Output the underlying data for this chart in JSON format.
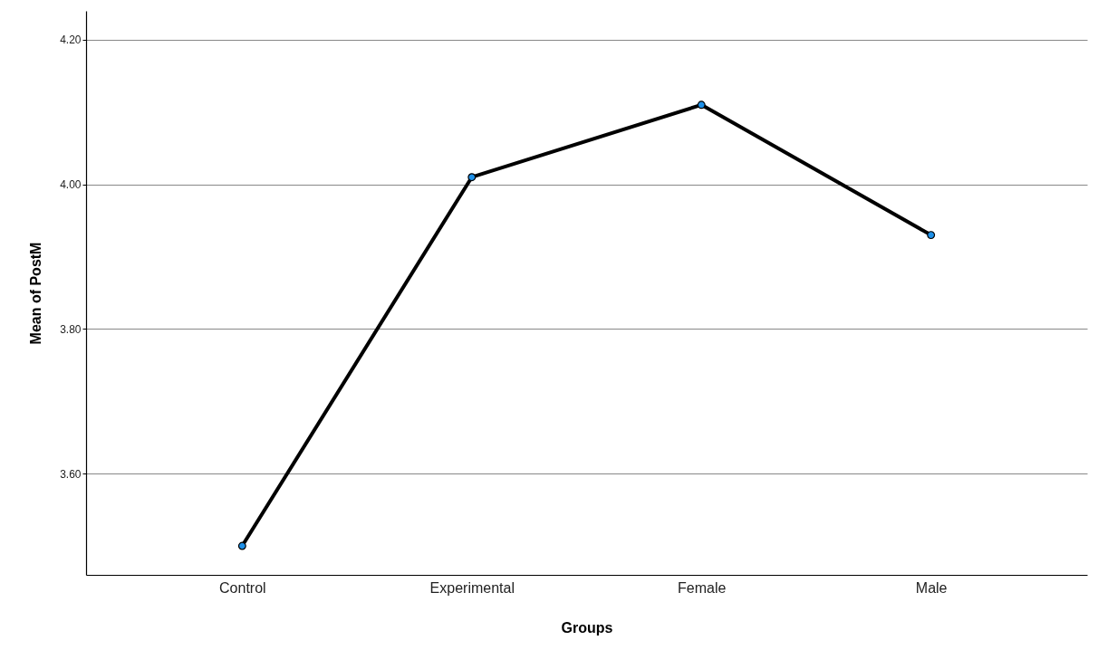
{
  "chart_data": {
    "type": "line",
    "xlabel": "Groups",
    "ylabel": "Mean of PostM",
    "categories": [
      "Control",
      "Experimental",
      "Female",
      "Male"
    ],
    "series": [
      {
        "color": "#000000",
        "values": [
          3.5,
          4.01,
          4.11,
          3.93
        ]
      }
    ],
    "ylim": [
      3.46,
      4.24
    ],
    "yticks": [
      {
        "value": 3.6,
        "label": "3.60"
      },
      {
        "value": 3.8,
        "label": "3.80"
      },
      {
        "value": 4.0,
        "label": "4.00"
      },
      {
        "value": 4.2,
        "label": "4.20"
      }
    ],
    "grid": "y",
    "marker": "circle",
    "line_style": "solid"
  }
}
